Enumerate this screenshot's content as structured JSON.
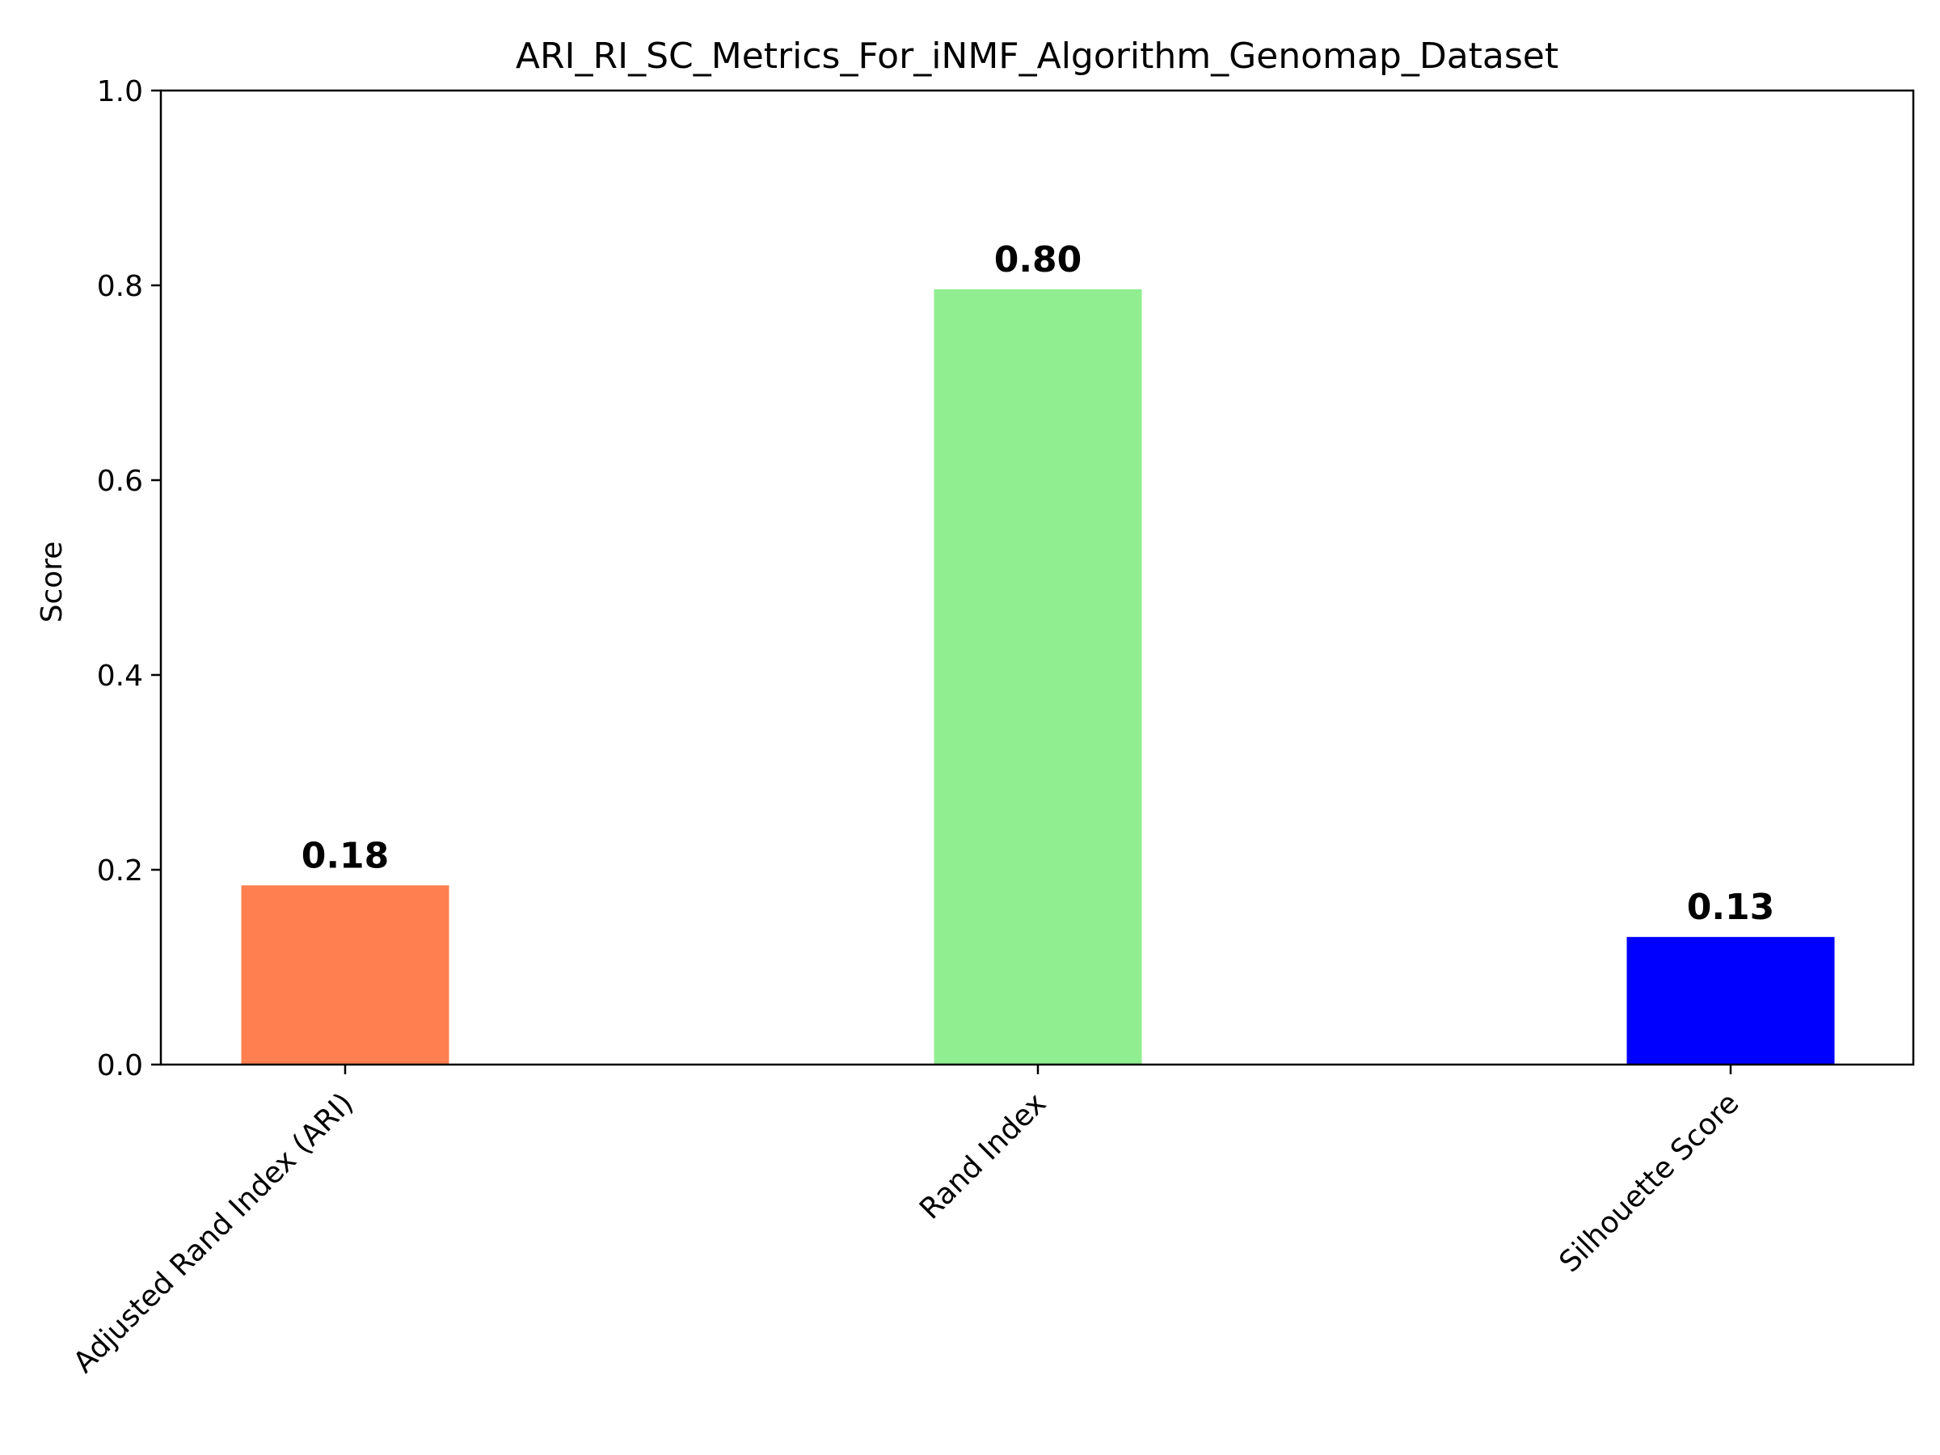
{
  "chart_data": {
    "type": "bar",
    "title": "ARI_RI_SC_Metrics_For_iNMF_Algorithm_Genomap_Dataset",
    "xlabel": "",
    "ylabel": "Score",
    "categories": [
      "Adjusted Rand Index (ARI)",
      "Rand Index",
      "Silhouette Score"
    ],
    "values": [
      0.184,
      0.796,
      0.131
    ],
    "value_labels": [
      "0.18",
      "0.80",
      "0.13"
    ],
    "colors": [
      "#ff7f50",
      "#90ee90",
      "#0000ff"
    ],
    "ylim": [
      0,
      1
    ],
    "yticks": [
      0.0,
      0.2,
      0.4,
      0.6,
      0.8,
      1.0
    ],
    "ytick_labels": [
      "0.0",
      "0.2",
      "0.4",
      "0.6",
      "0.8",
      "1.0"
    ],
    "grid": false,
    "legend": "none"
  }
}
